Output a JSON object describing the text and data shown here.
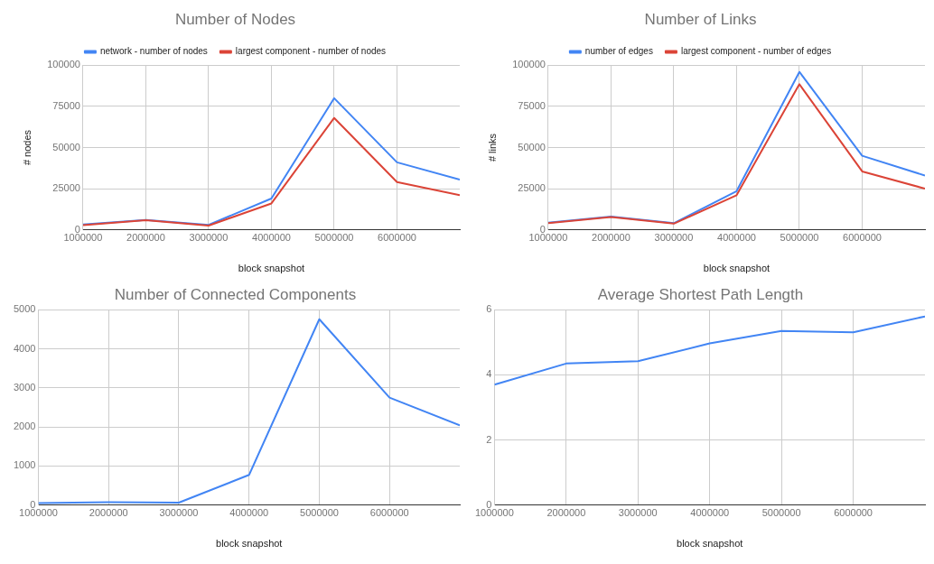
{
  "chart_data": [
    {
      "type": "line",
      "title": "Number of Nodes",
      "xlabel": "block snapshot",
      "ylabel": "# nodes",
      "x": [
        1000000,
        2000000,
        3000000,
        4000000,
        5000000,
        6000000,
        7000000
      ],
      "xlim": [
        1000000,
        7000000
      ],
      "xticks": [
        1000000,
        2000000,
        3000000,
        4000000,
        5000000,
        6000000
      ],
      "ylim": [
        0,
        100000
      ],
      "yticks": [
        0,
        25000,
        50000,
        75000,
        100000
      ],
      "grid": true,
      "legend": "top",
      "marker": "none",
      "series": [
        {
          "name": "network - number of nodes",
          "color": "#4285f4",
          "values": [
            3200,
            6000,
            3000,
            19000,
            80000,
            41000,
            30500
          ]
        },
        {
          "name": "largest component - number of nodes",
          "color": "#db4437",
          "values": [
            2800,
            5800,
            2500,
            16000,
            68000,
            29000,
            21000
          ]
        }
      ]
    },
    {
      "type": "line",
      "title": "Number of Links",
      "xlabel": "block snapshot",
      "ylabel": "# links",
      "x": [
        1000000,
        2000000,
        3000000,
        4000000,
        5000000,
        6000000,
        7000000
      ],
      "xlim": [
        1000000,
        7000000
      ],
      "xticks": [
        1000000,
        2000000,
        3000000,
        4000000,
        5000000,
        6000000
      ],
      "ylim": [
        0,
        100000
      ],
      "yticks": [
        0,
        25000,
        50000,
        75000,
        100000
      ],
      "grid": true,
      "legend": "top",
      "marker": "none",
      "series": [
        {
          "name": "number of edges",
          "color": "#4285f4",
          "values": [
            4300,
            8000,
            4000,
            23500,
            96000,
            45000,
            33000
          ]
        },
        {
          "name": "largest component - number of edges",
          "color": "#db4437",
          "values": [
            4000,
            7800,
            3700,
            21000,
            88500,
            35500,
            25000
          ]
        }
      ]
    },
    {
      "type": "line",
      "title": "Number of Connected Components",
      "xlabel": "block snapshot",
      "x": [
        1000000,
        2000000,
        3000000,
        4000000,
        5000000,
        6000000,
        7000000
      ],
      "xlim": [
        1000000,
        7000000
      ],
      "xticks": [
        1000000,
        2000000,
        3000000,
        4000000,
        5000000,
        6000000
      ],
      "ylim": [
        0,
        5000
      ],
      "yticks": [
        0,
        1000,
        2000,
        3000,
        4000,
        5000
      ],
      "grid": true,
      "marker": "none",
      "series": [
        {
          "color": "#4285f4",
          "values": [
            50,
            70,
            60,
            770,
            4760,
            2750,
            2040
          ]
        }
      ]
    },
    {
      "type": "line",
      "title": "Average Shortest Path Length",
      "xlabel": "block snapshot",
      "x": [
        1000000,
        2000000,
        3000000,
        4000000,
        5000000,
        6000000,
        7000000
      ],
      "xlim": [
        1000000,
        7000000
      ],
      "xticks": [
        1000000,
        2000000,
        3000000,
        4000000,
        5000000,
        6000000
      ],
      "ylim": [
        0,
        6
      ],
      "yticks": [
        0,
        2,
        4,
        6
      ],
      "grid": true,
      "marker": "none",
      "series": [
        {
          "color": "#4285f4",
          "values": [
            3.7,
            4.35,
            4.42,
            4.97,
            5.35,
            5.31,
            5.8
          ]
        }
      ]
    }
  ]
}
